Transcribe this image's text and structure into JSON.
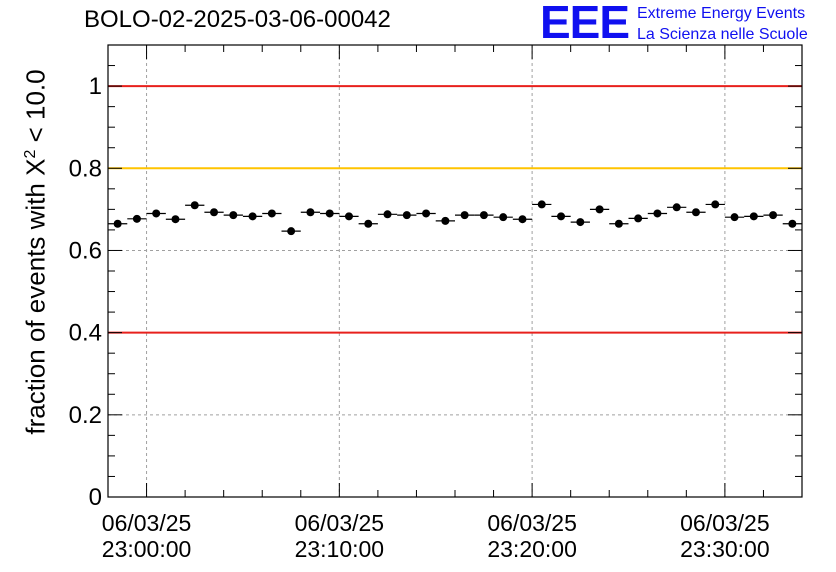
{
  "header": {
    "run_title": "BOLO-02-2025-03-06-00042"
  },
  "logo": {
    "mark": "EEE",
    "line1": "Extreme Energy Events",
    "line2": "La Scienza nelle Scuole"
  },
  "colors": {
    "red_line": "#e8201c",
    "yellow_line": "#ffc400",
    "marker": "#000000",
    "grid": "#a0a0a0"
  },
  "chart_data": {
    "type": "scatter",
    "title": "BOLO-02-2025-03-06-00042",
    "ylabel": "fraction of events with X² < 10.0",
    "ylabel_parts": {
      "prefix": "fraction of events with X",
      "exp": "2",
      "suffix": " < 10.0"
    },
    "xlabel": "",
    "ylim": [
      0,
      1.1
    ],
    "xlim_minutes": [
      -2,
      34
    ],
    "yticks": [
      0,
      0.2,
      0.4,
      0.6,
      0.8,
      1
    ],
    "ytick_labels": [
      "0",
      "0.2",
      "0.4",
      "0.6",
      "0.8",
      "1"
    ],
    "xticks_minutes": [
      0,
      10,
      20,
      30
    ],
    "xtick_labels": [
      [
        "06/03/25",
        "23:00:00"
      ],
      [
        "06/03/25",
        "23:10:00"
      ],
      [
        "06/03/25",
        "23:20:00"
      ],
      [
        "06/03/25",
        "23:30:00"
      ]
    ],
    "grid": true,
    "reference_lines": [
      {
        "y": 1.0,
        "color": "red"
      },
      {
        "y": 0.8,
        "color": "yellow"
      },
      {
        "y": 0.4,
        "color": "red"
      }
    ],
    "bin_width_minutes": 1,
    "x_minutes": [
      -1.5,
      -0.5,
      0.5,
      1.5,
      2.5,
      3.5,
      4.5,
      5.5,
      6.5,
      7.5,
      8.5,
      9.5,
      10.5,
      11.5,
      12.5,
      13.5,
      14.5,
      15.5,
      16.5,
      17.5,
      18.5,
      19.5,
      20.5,
      21.5,
      22.5,
      23.5,
      24.5,
      25.5,
      26.5,
      27.5,
      28.5,
      29.5,
      30.5,
      31.5,
      32.5,
      33.5
    ],
    "values": [
      0.665,
      0.677,
      0.69,
      0.676,
      0.71,
      0.693,
      0.686,
      0.683,
      0.69,
      0.647,
      0.693,
      0.69,
      0.683,
      0.665,
      0.688,
      0.686,
      0.69,
      0.672,
      0.686,
      0.686,
      0.681,
      0.676,
      0.712,
      0.683,
      0.669,
      0.7,
      0.665,
      0.678,
      0.69,
      0.705,
      0.693,
      0.712,
      0.681,
      0.683,
      0.686,
      0.665
    ],
    "error": 0.008
  }
}
